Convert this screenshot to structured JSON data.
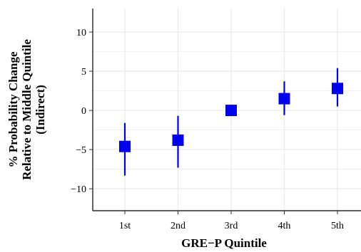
{
  "chart_data": {
    "type": "scatter",
    "categories": [
      "1st",
      "2nd",
      "3rd",
      "4th",
      "5th"
    ],
    "series": [
      {
        "values": [
          -4.6,
          -3.8,
          0.0,
          1.5,
          2.8
        ],
        "lower": [
          -8.3,
          -7.3,
          0.0,
          -0.6,
          0.5
        ],
        "upper": [
          -1.6,
          -0.7,
          0.0,
          3.7,
          5.4
        ]
      }
    ],
    "xlabel": "GRE−P Quintile",
    "ylabel_lines": [
      "% Probability Change",
      "Relative to Middle Quintile",
      "(Indirect)"
    ],
    "yticks": [
      -10,
      -5,
      0,
      5,
      10
    ],
    "ytick_labels": [
      "−10",
      "−5",
      "0",
      "5",
      "10"
    ],
    "ylim": [
      -12.8,
      13.0
    ],
    "grid": true,
    "colors": {
      "point": "#0000ee",
      "grid": "#ebebeb",
      "axis": "#000000"
    }
  }
}
